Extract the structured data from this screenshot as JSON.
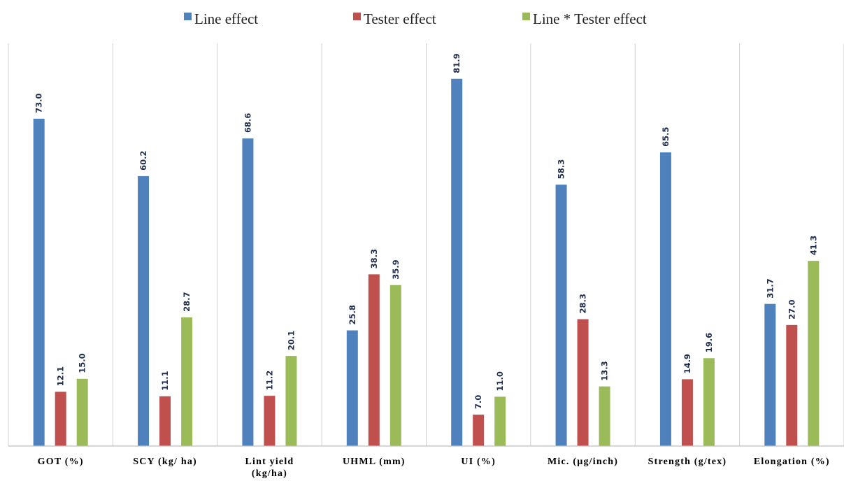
{
  "chart_data": {
    "type": "bar",
    "categories": [
      [
        "GOT (%)"
      ],
      [
        "SCY (kg/ ha)"
      ],
      [
        "Lint yield",
        "(kg/ha)"
      ],
      [
        "UHML (mm)"
      ],
      [
        "UI (%)"
      ],
      [
        "Mic. (µg/inch)"
      ],
      [
        "Strength (g/tex)"
      ],
      [
        "Elongation (%)"
      ]
    ],
    "series": [
      {
        "name": "Line effect",
        "color": "#4f81bd",
        "values": [
          73.0,
          60.2,
          68.6,
          25.8,
          81.9,
          58.3,
          65.5,
          31.7
        ]
      },
      {
        "name": "Tester effect",
        "color": "#c0504d",
        "values": [
          12.1,
          11.1,
          11.2,
          38.3,
          7.0,
          28.3,
          14.9,
          27.0
        ]
      },
      {
        "name": "Line * Tester effect",
        "color": "#9bbb59",
        "values": [
          15.0,
          28.7,
          20.1,
          35.9,
          11.0,
          13.3,
          19.6,
          41.3
        ]
      }
    ],
    "value_format_decimals": 1,
    "ylim": [
      0,
      90
    ],
    "legend_position": "top",
    "grid": false
  }
}
